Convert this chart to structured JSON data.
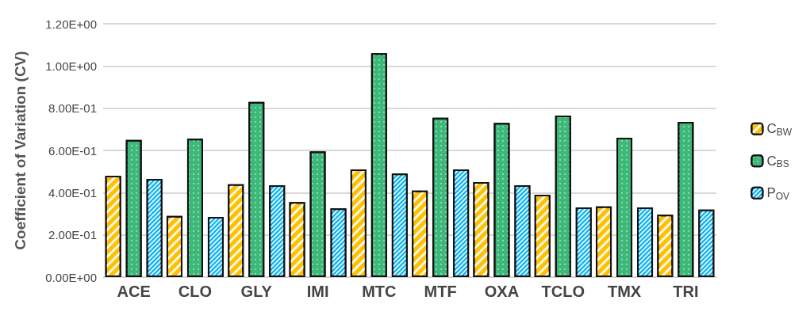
{
  "chart_data": {
    "type": "bar",
    "ylabel": "Coefficient of Variation (CV)",
    "categories": [
      "ACE",
      "CLO",
      "GLY",
      "IMI",
      "MTC",
      "MTF",
      "OXA",
      "TCLO",
      "TMX",
      "TRI"
    ],
    "series": [
      {
        "name": "C$_{BW}$",
        "color": "#ffc000",
        "values": [
          0.48,
          0.29,
          0.44,
          0.355,
          0.51,
          0.41,
          0.45,
          0.39,
          0.335,
          0.295
        ]
      },
      {
        "name": "C$_{BS}$",
        "color": "#3cb878",
        "values": [
          0.65,
          0.655,
          0.83,
          0.595,
          1.06,
          0.755,
          0.73,
          0.765,
          0.66,
          0.735
        ]
      },
      {
        "name": "P$_{OV}$",
        "color": "#00b0f0",
        "values": [
          0.465,
          0.285,
          0.435,
          0.325,
          0.49,
          0.51,
          0.435,
          0.33,
          0.33,
          0.32
        ]
      }
    ],
    "ylim": [
      0,
      1.2
    ],
    "yticks": [
      {
        "value": 0,
        "label": "0.00E+00"
      },
      {
        "value": 0.2,
        "label": "2.00E-01"
      },
      {
        "value": 0.4,
        "label": "4.00E-01"
      },
      {
        "value": 0.6,
        "label": "6.00E-01"
      },
      {
        "value": 0.8,
        "label": "8.00E-01"
      },
      {
        "value": 1.0,
        "label": "1.00E+00"
      },
      {
        "value": 1.2,
        "label": "1.20E+00"
      }
    ],
    "grid": "y",
    "legend": "right"
  }
}
